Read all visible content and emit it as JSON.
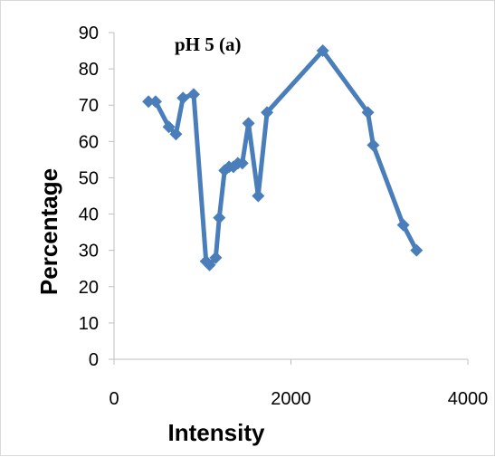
{
  "chart_data": {
    "type": "line",
    "title": "pH 5 (a)",
    "xlabel": "Intensity",
    "ylabel": "Percentage",
    "xlim": [
      0,
      4000
    ],
    "ylim": [
      0,
      90
    ],
    "xticks": [
      0,
      2000,
      4000
    ],
    "yticks": [
      0,
      10,
      20,
      30,
      40,
      50,
      60,
      70,
      80,
      90
    ],
    "grid": false,
    "legend": "none",
    "series": [
      {
        "color": "#4a7ebb",
        "x": [
          390,
          470,
          620,
          700,
          780,
          900,
          1040,
          1080,
          1150,
          1190,
          1250,
          1300,
          1350,
          1400,
          1450,
          1520,
          1630,
          1730,
          2360,
          2870,
          2930,
          3270,
          3420
        ],
        "y": [
          71,
          71,
          64,
          62,
          72,
          73,
          27,
          26,
          28,
          39,
          52,
          53,
          53,
          54,
          54,
          65,
          45,
          68,
          85,
          68,
          59,
          37,
          30
        ]
      }
    ]
  }
}
